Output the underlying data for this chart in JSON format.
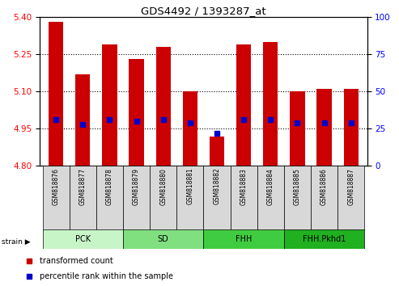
{
  "title": "GDS4492 / 1393287_at",
  "samples": [
    "GSM818876",
    "GSM818877",
    "GSM818878",
    "GSM818879",
    "GSM818880",
    "GSM818881",
    "GSM818882",
    "GSM818883",
    "GSM818884",
    "GSM818885",
    "GSM818886",
    "GSM818887"
  ],
  "transformed_counts": [
    5.38,
    5.17,
    5.29,
    5.23,
    5.28,
    5.1,
    4.92,
    5.29,
    5.3,
    5.1,
    5.11,
    5.11
  ],
  "percentile_ranks": [
    31,
    28,
    31,
    30,
    31,
    29,
    22,
    31,
    31,
    29,
    29,
    29
  ],
  "groups": [
    {
      "label": "PCK",
      "start": 0,
      "end": 3,
      "color": "#c8f5c8"
    },
    {
      "label": "SD",
      "start": 3,
      "end": 6,
      "color": "#80e080"
    },
    {
      "label": "FHH",
      "start": 6,
      "end": 9,
      "color": "#40cc40"
    },
    {
      "label": "FHH.Pkhd1",
      "start": 9,
      "end": 12,
      "color": "#20b020"
    }
  ],
  "ylim_left": [
    4.8,
    5.4
  ],
  "ylim_right": [
    0,
    100
  ],
  "yticks_left": [
    4.8,
    4.95,
    5.1,
    5.25,
    5.4
  ],
  "yticks_right": [
    0,
    25,
    50,
    75,
    100
  ],
  "grid_lines": [
    4.95,
    5.1,
    5.25
  ],
  "bar_color": "#cc0000",
  "dot_color": "#0000cc",
  "bar_width": 0.55,
  "baseline": 4.8,
  "legend_items": [
    {
      "label": "transformed count",
      "color": "#cc0000"
    },
    {
      "label": "percentile rank within the sample",
      "color": "#0000cc"
    }
  ],
  "strain_label": "strain"
}
